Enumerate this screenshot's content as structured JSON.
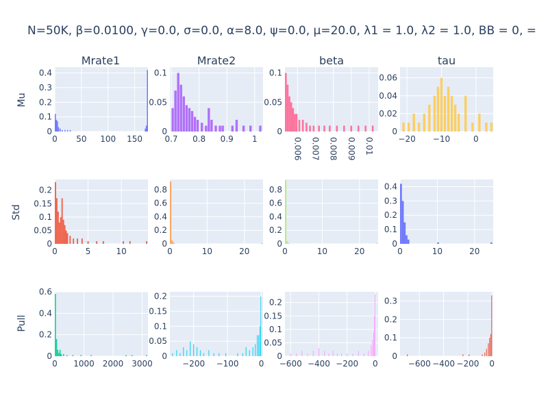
{
  "title": "N=50K, β=0.0100, γ=0.0, σ=0.0,  α=8.0, ψ=0.0, μ=20.0, λ1 = 1.0, λ2 = 1.0, BB = 0, = ",
  "colors": {
    "plot_bg": "#E5ECF6",
    "grid": "#ffffff",
    "text": "#2a3f5f"
  },
  "chart_data": {
    "type": "bar",
    "layout": "histogram-grid",
    "columns": [
      "Mrate1",
      "Mrate2",
      "beta",
      "tau"
    ],
    "rows": [
      "Mu",
      "Std",
      "Pull"
    ],
    "panels": [
      {
        "row": "Mu",
        "col": "Mrate1",
        "color": "#636EFA",
        "xlim": [
          0,
          175
        ],
        "ylim": [
          0,
          0.44
        ],
        "xticks": [
          0,
          50,
          100,
          150
        ],
        "xtick_labels": [
          "0",
          "50",
          "100",
          "150"
        ],
        "yticks": [
          0,
          0.1,
          0.2,
          0.3,
          0.4
        ],
        "ytick_labels": [
          "0",
          "0.1",
          "0.2",
          "0.3",
          "0.4"
        ],
        "x": [
          1,
          3,
          5,
          7,
          10,
          14,
          19,
          24,
          29,
          170,
          172,
          174
        ],
        "values": [
          0.12,
          0.08,
          0.07,
          0.03,
          0.02,
          0.01,
          0.01,
          0.01,
          0.01,
          0.02,
          0.04,
          0.42
        ]
      },
      {
        "row": "Mu",
        "col": "Mrate2",
        "color": "#AB63FA",
        "xlim": [
          0.695,
          1.03
        ],
        "ylim": [
          0,
          0.11
        ],
        "xticks": [
          0.7,
          0.8,
          0.9,
          1
        ],
        "xtick_labels": [
          "0.7",
          "0.8",
          "0.9",
          "1"
        ],
        "yticks": [
          0,
          0.05,
          0.1
        ],
        "ytick_labels": [
          "0",
          "0.05",
          "0.1"
        ],
        "x": [
          0.705,
          0.715,
          0.725,
          0.735,
          0.745,
          0.755,
          0.765,
          0.775,
          0.785,
          0.795,
          0.81,
          0.825,
          0.835,
          0.845,
          0.86,
          0.875,
          0.885,
          0.92,
          0.935,
          0.96,
          0.985,
          1.02
        ],
        "values": [
          0.04,
          0.07,
          0.1,
          0.08,
          0.06,
          0.045,
          0.04,
          0.035,
          0.025,
          0.02,
          0.015,
          0.01,
          0.04,
          0.02,
          0.01,
          0.01,
          0.01,
          0.01,
          0.02,
          0.01,
          0.01,
          0.01
        ]
      },
      {
        "row": "Mu",
        "col": "beta",
        "color": "#FF6692",
        "xlim": [
          0.0053,
          0.0105
        ],
        "ylim": [
          0,
          0.11
        ],
        "xticks": [
          0.006,
          0.007,
          0.008,
          0.009,
          0.01
        ],
        "xtick_labels": [
          "0.006",
          "0.007",
          "0.008",
          "0.009",
          "0.01"
        ],
        "yticks": [
          0,
          0.05,
          0.1
        ],
        "ytick_labels": [
          "0",
          "0.05",
          "0.1"
        ],
        "x": [
          0.00535,
          0.00545,
          0.00555,
          0.00565,
          0.00575,
          0.00585,
          0.00595,
          0.0061,
          0.0063,
          0.0065,
          0.0067,
          0.0069,
          0.0072,
          0.0075,
          0.0078,
          0.0082,
          0.0086,
          0.009,
          0.0094,
          0.0098,
          0.0102
        ],
        "values": [
          0.1,
          0.08,
          0.06,
          0.05,
          0.04,
          0.03,
          0.03,
          0.02,
          0.02,
          0.015,
          0.01,
          0.01,
          0.01,
          0.01,
          0.01,
          0.01,
          0.01,
          0.01,
          0.01,
          0.01,
          0.01
        ]
      },
      {
        "row": "Mu",
        "col": "tau",
        "color": "#FECB52",
        "xlim": [
          -22,
          5
        ],
        "ylim": [
          0,
          0.072
        ],
        "xticks": [
          -20,
          -10,
          0
        ],
        "xtick_labels": [
          "−20",
          "−10",
          "0"
        ],
        "yticks": [
          0,
          0.02,
          0.04,
          0.06
        ],
        "ytick_labels": [
          "0",
          "0.02",
          "0.04",
          "0.06"
        ],
        "x": [
          -21,
          -19.5,
          -18,
          -16.5,
          -15,
          -13.5,
          -12,
          -11,
          -10,
          -9,
          -8,
          -7,
          -6,
          -5,
          -3,
          -1,
          1,
          3,
          4.5
        ],
        "values": [
          0.01,
          0.01,
          0.02,
          0.01,
          0.02,
          0.03,
          0.04,
          0.05,
          0.06,
          0.04,
          0.05,
          0.04,
          0.03,
          0.02,
          0.04,
          0.01,
          0.02,
          0.01,
          0.01
        ]
      },
      {
        "row": "Std",
        "col": "Mrate1",
        "color": "#EF553B",
        "xlim": [
          0,
          14
        ],
        "ylim": [
          0,
          0.24
        ],
        "xticks": [
          0,
          5,
          10
        ],
        "xtick_labels": [
          "0",
          "5",
          "10"
        ],
        "yticks": [
          0,
          0.05,
          0.1,
          0.15,
          0.2
        ],
        "ytick_labels": [
          "0",
          "0.05",
          "0.1",
          "0.15",
          "0.2"
        ],
        "x": [
          0.1,
          0.3,
          0.5,
          0.7,
          0.9,
          1.1,
          1.3,
          1.5,
          1.7,
          1.9,
          2.3,
          2.8,
          3.4,
          4.1,
          5.0,
          6.3,
          7.3,
          10.3,
          11.3,
          13.8
        ],
        "values": [
          0.23,
          0.17,
          0.12,
          0.08,
          0.1,
          0.17,
          0.09,
          0.07,
          0.05,
          0.04,
          0.03,
          0.02,
          0.02,
          0.02,
          0.01,
          0.01,
          0.01,
          0.01,
          0.01,
          0.01
        ]
      },
      {
        "row": "Std",
        "col": "Mrate2",
        "color": "#FFA15A",
        "xlim": [
          0,
          25
        ],
        "ylim": [
          0,
          0.95
        ],
        "xticks": [
          0,
          10,
          20
        ],
        "xtick_labels": [
          "0",
          "10",
          "20"
        ],
        "yticks": [
          0,
          0.2,
          0.4,
          0.6,
          0.8
        ],
        "ytick_labels": [
          "0",
          "0.2",
          "0.4",
          "0.6",
          "0.8"
        ],
        "x": [
          0.2,
          0.6,
          1.0,
          24.7
        ],
        "values": [
          0.92,
          0.05,
          0.02,
          0.01
        ]
      },
      {
        "row": "Std",
        "col": "beta",
        "color": "#B6E880",
        "xlim": [
          0,
          25
        ],
        "ylim": [
          0,
          0.95
        ],
        "xticks": [
          0,
          10,
          20
        ],
        "xtick_labels": [
          "0",
          "10",
          "20"
        ],
        "yticks": [
          0,
          0.2,
          0.4,
          0.6,
          0.8
        ],
        "ytick_labels": [
          "0",
          "0.2",
          "0.4",
          "0.6",
          "0.8"
        ],
        "x": [
          0.2,
          0.6,
          1.0,
          24.7
        ],
        "values": [
          0.94,
          0.04,
          0.01,
          0.01
        ]
      },
      {
        "row": "Std",
        "col": "tau",
        "color": "#636EFA",
        "xlim": [
          0,
          25
        ],
        "ylim": [
          0,
          0.45
        ],
        "xticks": [
          0,
          10,
          20
        ],
        "xtick_labels": [
          "0",
          "10",
          "20"
        ],
        "yticks": [
          0,
          0.1,
          0.2,
          0.3,
          0.4
        ],
        "ytick_labels": [
          "0",
          "0.1",
          "0.2",
          "0.3",
          "0.4"
        ],
        "x": [
          0.25,
          0.75,
          1.25,
          1.75,
          2.25,
          10.2,
          24.5
        ],
        "values": [
          0.42,
          0.3,
          0.15,
          0.06,
          0.03,
          0.01,
          0.01
        ]
      },
      {
        "row": "Pull",
        "col": "Mrate1",
        "color": "#00CC96",
        "xlim": [
          0,
          3200
        ],
        "ylim": [
          0,
          0.6
        ],
        "xticks": [
          0,
          1000,
          2000,
          3000
        ],
        "xtick_labels": [
          "0",
          "1000",
          "2000",
          "3000"
        ],
        "yticks": [
          0,
          0.2,
          0.4,
          0.6
        ],
        "ytick_labels": [
          "0",
          "0.2",
          "0.4",
          "0.6"
        ],
        "x": [
          20,
          60,
          100,
          140,
          180,
          220,
          300,
          420,
          620,
          900,
          1250,
          2450,
          2650,
          3150
        ],
        "values": [
          0.58,
          0.16,
          0.06,
          0.03,
          0.06,
          0.02,
          0.02,
          0.01,
          0.01,
          0.01,
          0.01,
          0.01,
          0.01,
          0.01
        ]
      },
      {
        "row": "Pull",
        "col": "Mrate2",
        "color": "#19D3F3",
        "xlim": [
          -270,
          5
        ],
        "ylim": [
          0,
          0.215
        ],
        "xticks": [
          -200,
          -100,
          0
        ],
        "xtick_labels": [
          "−200",
          "−100",
          "0"
        ],
        "yticks": [
          0,
          0.05,
          0.1,
          0.15,
          0.2
        ],
        "ytick_labels": [
          "0",
          "0.05",
          "0.1",
          "0.15",
          "0.2"
        ],
        "x": [
          -262,
          -250,
          -240,
          -230,
          -220,
          -210,
          -200,
          -190,
          -180,
          -170,
          -155,
          -140,
          -125,
          -105,
          -70,
          -55,
          -45,
          -35,
          -25,
          -18,
          -12,
          -8,
          -4,
          -1.5
        ],
        "values": [
          0.01,
          0.02,
          0.01,
          0.03,
          0.02,
          0.05,
          0.04,
          0.03,
          0.02,
          0.01,
          0.02,
          0.01,
          0.01,
          0.01,
          0.01,
          0.01,
          0.03,
          0.02,
          0.03,
          0.04,
          0.07,
          0.07,
          0.1,
          0.2
        ]
      },
      {
        "row": "Pull",
        "col": "beta",
        "color": "#FF97FF",
        "xlim": [
          -640,
          20
        ],
        "ylim": [
          0,
          0.24
        ],
        "xticks": [
          -600,
          -400,
          -200,
          0
        ],
        "xtick_labels": [
          "−600",
          "−400",
          "−200",
          "0"
        ],
        "yticks": [
          0,
          0.05,
          0.1,
          0.15,
          0.2
        ],
        "ytick_labels": [
          "0",
          "0.05",
          "0.1",
          "0.15",
          "0.2"
        ],
        "x": [
          -600,
          -560,
          -520,
          -480,
          -440,
          -400,
          -360,
          -330,
          -300,
          -270,
          -240,
          -200,
          -160,
          -120,
          -80,
          -50,
          -30,
          -20,
          -12,
          -6,
          -2
        ],
        "values": [
          0.01,
          0.01,
          0.02,
          0.01,
          0.02,
          0.03,
          0.02,
          0.01,
          0.02,
          0.01,
          0.01,
          0.01,
          0.01,
          0.02,
          0.01,
          0.02,
          0.04,
          0.06,
          0.09,
          0.15,
          0.23
        ]
      },
      {
        "row": "Pull",
        "col": "tau",
        "color": "#EF553B",
        "xlim": [
          -760,
          10
        ],
        "ylim": [
          0,
          0.35
        ],
        "xticks": [
          -600,
          -400,
          -200,
          0
        ],
        "xtick_labels": [
          "−600",
          "−400",
          "−200",
          "0"
        ],
        "yticks": [
          0,
          0.1,
          0.2,
          0.3
        ],
        "ytick_labels": [
          "0",
          "0.1",
          "0.2",
          "0.3"
        ],
        "x": [
          -700,
          -240,
          -190,
          -80,
          -60,
          -45,
          -30,
          -20,
          -10,
          -3
        ],
        "values": [
          0.01,
          0.01,
          0.01,
          0.01,
          0.02,
          0.04,
          0.07,
          0.1,
          0.12,
          0.33
        ]
      }
    ]
  }
}
